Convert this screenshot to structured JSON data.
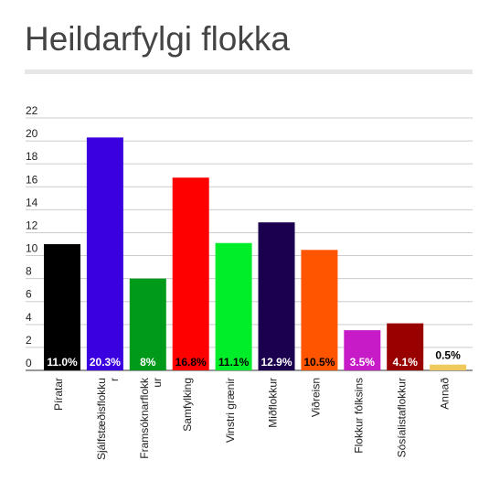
{
  "chart_data": {
    "type": "bar",
    "title": "Heildarfylgi flokka",
    "xlabel": "",
    "ylabel": "",
    "ylim": [
      0,
      22
    ],
    "yticks": [
      0,
      2,
      4,
      6,
      8,
      10,
      12,
      14,
      16,
      18,
      20,
      22
    ],
    "grid": true,
    "legend": "none",
    "categories": [
      "Píratar",
      "Sjálfstæðisflokkur",
      "Framsóknarflokkur",
      "Samfylking",
      "Vinstri grænir",
      "Miðflokkur",
      "Viðreisn",
      "Flokkur fólksins",
      "Sósíalistaflokkur",
      "Annað"
    ],
    "category_label_lines": [
      [
        "Píratar"
      ],
      [
        "Sjálfstæðisflokku",
        "r"
      ],
      [
        "Framsóknarflokk",
        "ur"
      ],
      [
        "Samfylking"
      ],
      [
        "Vinstri grænir"
      ],
      [
        "Miðflokkur"
      ],
      [
        "Viðreisn"
      ],
      [
        "Flokkur fólksins"
      ],
      [
        "Sósíalistaflokkur"
      ],
      [
        "Annað"
      ]
    ],
    "values": [
      11.0,
      20.3,
      8.0,
      16.8,
      11.1,
      12.9,
      10.5,
      3.5,
      4.1,
      0.5
    ],
    "data_labels": [
      "11.0%",
      "20.3%",
      "8%",
      "16.8%",
      "11.1%",
      "12.9%",
      "10.5%",
      "3.5%",
      "4.1%",
      "0.5%"
    ],
    "colors": [
      "#000000",
      "#3b00e0",
      "#009a1a",
      "#ff0000",
      "#00ee2a",
      "#1c0050",
      "#ff5500",
      "#c61bc6",
      "#990000",
      "#f0c95c"
    ],
    "label_colors": [
      "#ffffff",
      "#ffffff",
      "#ffffff",
      "#000000",
      "#000000",
      "#ffffff",
      "#000000",
      "#ffffff",
      "#ffffff",
      "#000000"
    ]
  }
}
